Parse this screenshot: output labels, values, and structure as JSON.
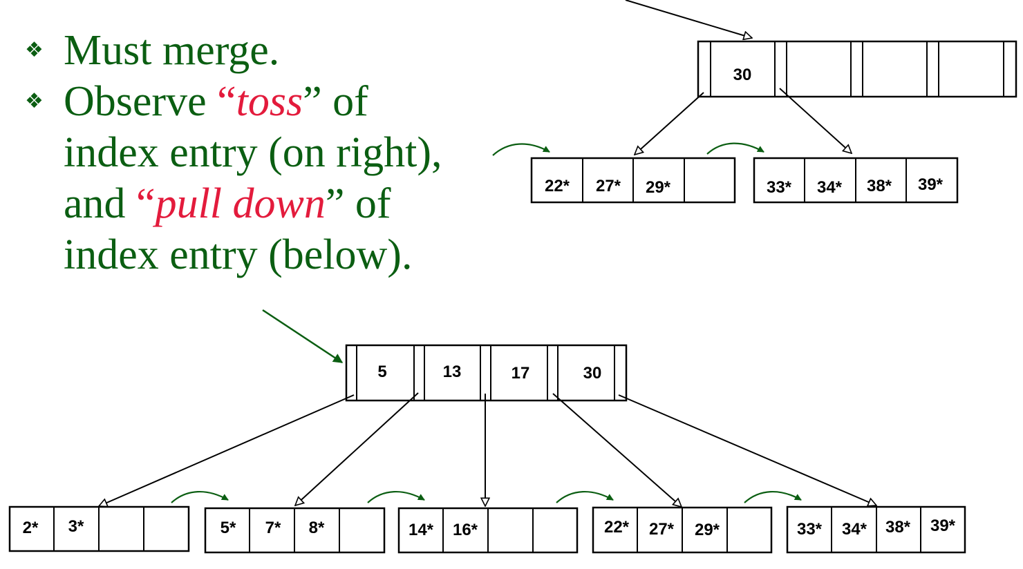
{
  "bullets": {
    "icon": "diamond-bullet-icon",
    "item1": "Must merge.",
    "item2_lines": {
      "l1_pre": "Observe ",
      "l1_red": "toss",
      "l1_post": " of",
      "l2": "index entry (on right),",
      "l3_pre": "and ",
      "l3_red": "pull down",
      "l3_post": " of",
      "l4": "index entry (below)."
    },
    "quote_open": "“",
    "quote_close": "”"
  },
  "top_tree": {
    "index_keys": [
      "30",
      "",
      "",
      ""
    ],
    "leaves": [
      [
        "22*",
        "27*",
        "29*",
        ""
      ],
      [
        "33*",
        "34*",
        "38*",
        "39*"
      ]
    ]
  },
  "bottom_tree": {
    "index_keys": [
      "5",
      "13",
      "17",
      "30"
    ],
    "leaves": [
      [
        "2*",
        "3*",
        "",
        ""
      ],
      [
        "5*",
        "7*",
        "8*",
        ""
      ],
      [
        "14*",
        "16*",
        "",
        ""
      ],
      [
        "22*",
        "27*",
        "29*",
        ""
      ],
      [
        "33*",
        "34*",
        "38*",
        "39*"
      ]
    ]
  },
  "colors": {
    "text_green": "#0b5e12",
    "accent_red": "#e31b3c",
    "line": "#000000"
  }
}
